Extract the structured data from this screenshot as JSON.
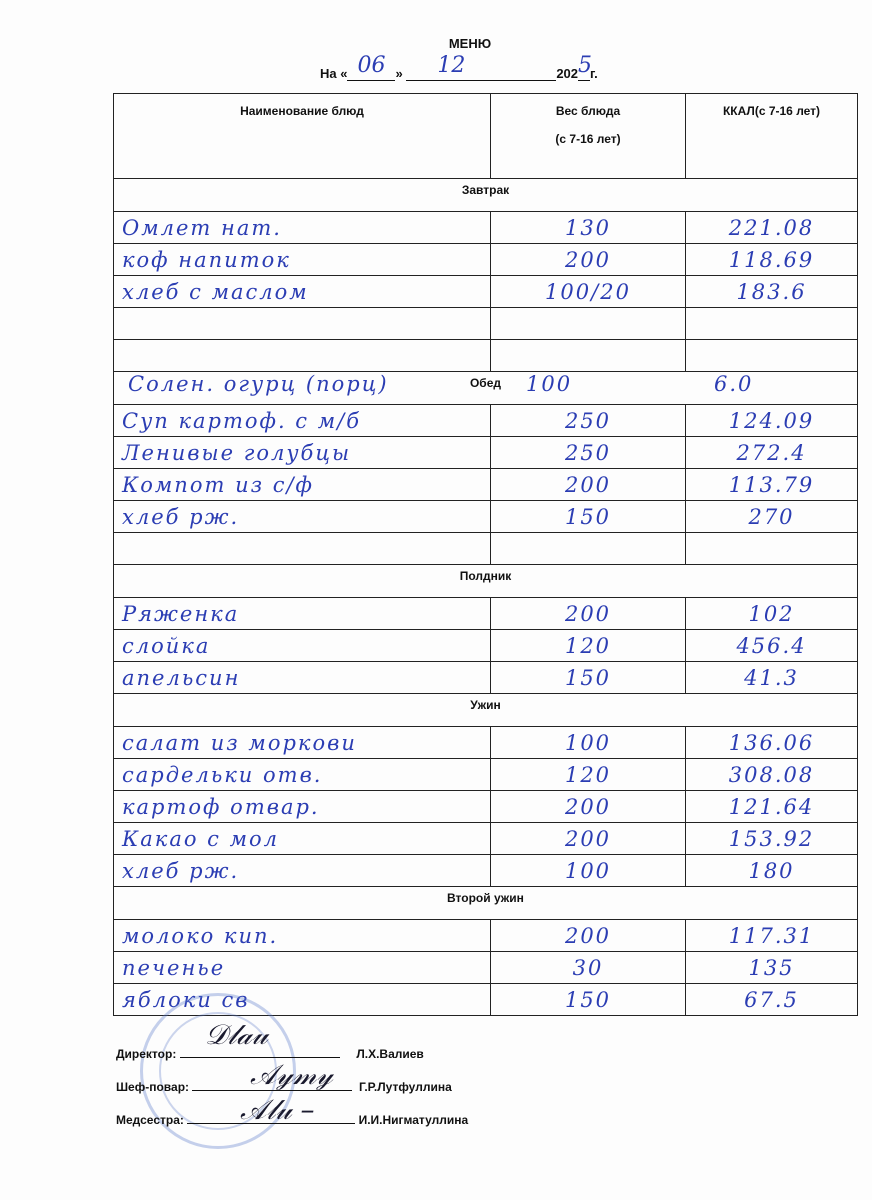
{
  "title": "МЕНЮ",
  "date": {
    "prefix": "На «",
    "day": "06",
    "mid": "»",
    "month": "12",
    "year_prefix": "202",
    "year_digit": "5",
    "suffix": "г."
  },
  "headers": {
    "name": "Наименование блюд",
    "weight_line1": "Вес блюда",
    "weight_line2": "(с 7-16 лет)",
    "kcal": "ККАЛ(с 7-16 лет)"
  },
  "sections": [
    {
      "label": "Завтрак",
      "inline": null,
      "rows": [
        {
          "name": "Омлет нат.",
          "weight": "130",
          "kcal": "221.08"
        },
        {
          "name": "коф напиток",
          "weight": "200",
          "kcal": "118.69"
        },
        {
          "name": "хлеб с маслом",
          "weight": "100/20",
          "kcal": "183.6"
        },
        {
          "name": "",
          "weight": "",
          "kcal": ""
        },
        {
          "name": "",
          "weight": "",
          "kcal": ""
        }
      ]
    },
    {
      "label": "Обед",
      "inline": {
        "name": "Солен. огурц (порц)",
        "weight": "100",
        "kcal": "6.0"
      },
      "rows": [
        {
          "name": "Суп картоф. с м/б",
          "weight": "250",
          "kcal": "124.09"
        },
        {
          "name": "Ленивые голубцы",
          "weight": "250",
          "kcal": "272.4"
        },
        {
          "name": "Компот из с/ф",
          "weight": "200",
          "kcal": "113.79"
        },
        {
          "name": "хлеб рж.",
          "weight": "150",
          "kcal": "270"
        },
        {
          "name": "",
          "weight": "",
          "kcal": ""
        }
      ]
    },
    {
      "label": "Полдник",
      "inline": null,
      "rows": [
        {
          "name": "Ряженка",
          "weight": "200",
          "kcal": "102"
        },
        {
          "name": "слойка",
          "weight": "120",
          "kcal": "456.4"
        },
        {
          "name": "апельсин",
          "weight": "150",
          "kcal": "41.3"
        }
      ]
    },
    {
      "label": "Ужин",
      "inline": null,
      "rows": [
        {
          "name": "салат из моркови",
          "weight": "100",
          "kcal": "136.06"
        },
        {
          "name": "сардельки отв.",
          "weight": "120",
          "kcal": "308.08"
        },
        {
          "name": "картоф отвар.",
          "weight": "200",
          "kcal": "121.64"
        },
        {
          "name": "Какао с мол",
          "weight": "200",
          "kcal": "153.92"
        },
        {
          "name": "хлеб рж.",
          "weight": "100",
          "kcal": "180"
        }
      ]
    },
    {
      "label": "Второй ужин",
      "inline": null,
      "rows": [
        {
          "name": "молоко кип.",
          "weight": "200",
          "kcal": "117.31"
        },
        {
          "name": "печенье",
          "weight": "30",
          "kcal": "135"
        },
        {
          "name": "яблоки св",
          "weight": "150",
          "kcal": "67.5"
        }
      ]
    }
  ],
  "signatures": [
    {
      "role": "Директор:",
      "name": "Л.Х.Валиев"
    },
    {
      "role": "Шеф-повар:",
      "name": "Г.Р.Лутфуллина"
    },
    {
      "role": "Медсестра:",
      "name": "И.И.Нигматуллина"
    }
  ],
  "colors": {
    "ink": "#2b3db3",
    "stamp": "#5a78c8"
  }
}
